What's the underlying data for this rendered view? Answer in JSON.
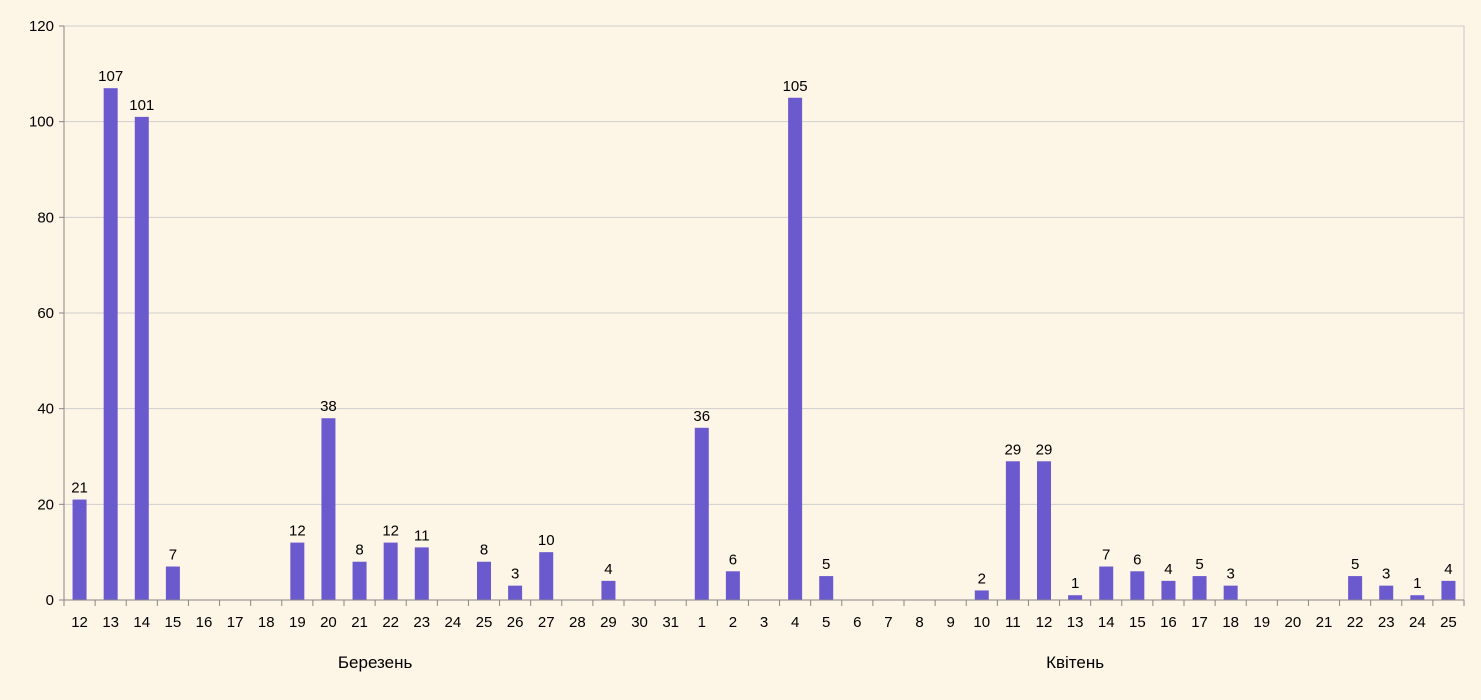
{
  "chart_data": {
    "type": "bar",
    "title": "",
    "xlabel": "",
    "ylabel": "",
    "ylim": [
      0,
      120
    ],
    "yticks": [
      0,
      20,
      40,
      60,
      80,
      100,
      120
    ],
    "grid": "horizontal",
    "legend": "none",
    "bar_color": "#6a5acd",
    "categories": [
      "12",
      "13",
      "14",
      "15",
      "16",
      "17",
      "18",
      "19",
      "20",
      "21",
      "22",
      "23",
      "24",
      "25",
      "26",
      "27",
      "28",
      "29",
      "30",
      "31",
      "1",
      "2",
      "3",
      "4",
      "5",
      "6",
      "7",
      "8",
      "9",
      "10",
      "11",
      "12",
      "13",
      "14",
      "15",
      "16",
      "17",
      "18",
      "19",
      "20",
      "21",
      "22",
      "23",
      "24",
      "25"
    ],
    "values": [
      21,
      107,
      101,
      7,
      null,
      null,
      null,
      12,
      38,
      8,
      12,
      11,
      null,
      8,
      3,
      10,
      null,
      4,
      null,
      null,
      36,
      6,
      null,
      105,
      5,
      null,
      null,
      null,
      null,
      2,
      29,
      29,
      1,
      7,
      6,
      4,
      5,
      3,
      null,
      null,
      null,
      5,
      3,
      1,
      4
    ],
    "groups": [
      {
        "label": "Березень",
        "count": 20
      },
      {
        "label": "Квітень",
        "count": 25
      }
    ]
  }
}
